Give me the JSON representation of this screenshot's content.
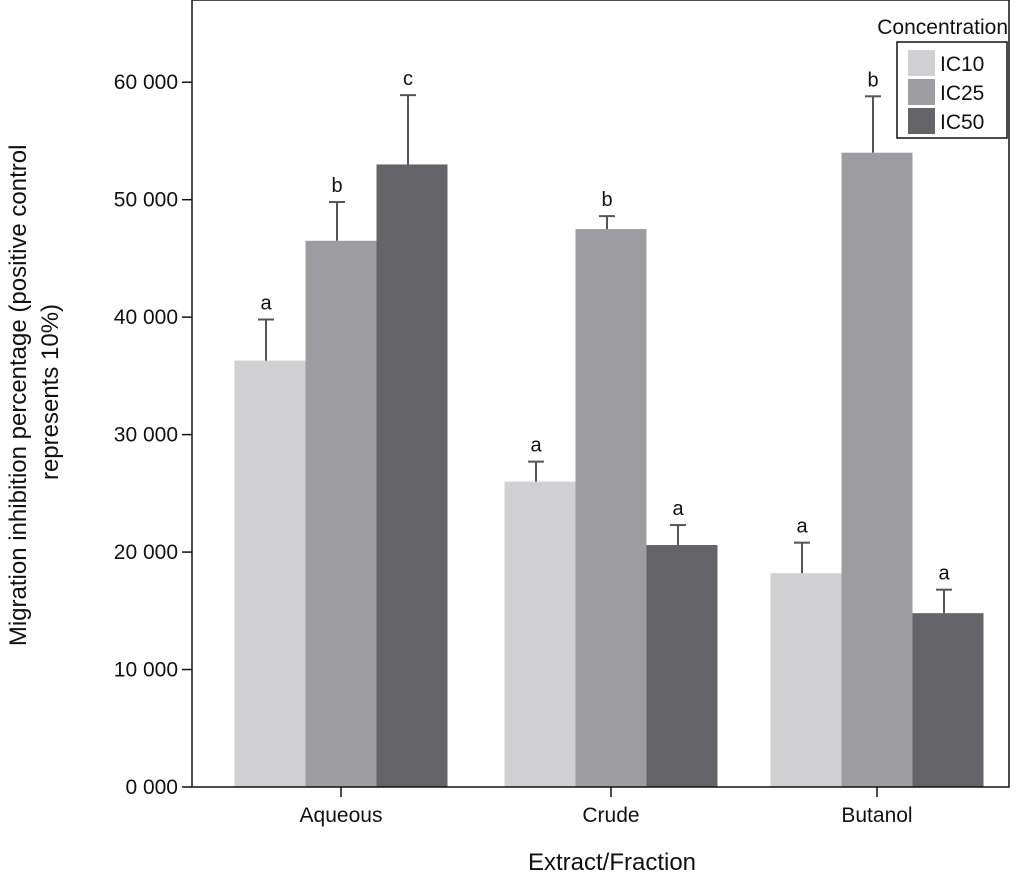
{
  "chart_data": {
    "type": "bar",
    "xlabel": "Extract/Fraction",
    "ylabel": [
      "Migration inhibition percentage (positive control",
      "represents 10%)"
    ],
    "ylim": [
      0,
      67000
    ],
    "yticks": [
      0,
      10000,
      20000,
      30000,
      40000,
      50000,
      60000
    ],
    "ytick_labels": [
      "0 000",
      "10 000",
      "20 000",
      "30 000",
      "40 000",
      "50 000",
      "60 000"
    ],
    "categories": [
      "Aqueous",
      "Crude",
      "Butanol"
    ],
    "legend": {
      "title": "Concentration",
      "placement": "top-right"
    },
    "grid": false,
    "series": [
      {
        "name": "IC10",
        "color": "#d0d0d2",
        "values": [
          36300,
          26000,
          18200
        ],
        "errors": [
          3500,
          1700,
          2600
        ],
        "letters": [
          "a",
          "a",
          "a"
        ]
      },
      {
        "name": "IC25",
        "color": "#9d9da1",
        "values": [
          46500,
          47500,
          54000
        ],
        "errors": [
          3300,
          1100,
          4800
        ],
        "letters": [
          "b",
          "b",
          "b"
        ]
      },
      {
        "name": "IC50",
        "color": "#646468",
        "values": [
          53000,
          20600,
          14800
        ],
        "errors": [
          5900,
          1700,
          2000
        ],
        "letters": [
          "c",
          "a",
          "a"
        ]
      }
    ]
  }
}
